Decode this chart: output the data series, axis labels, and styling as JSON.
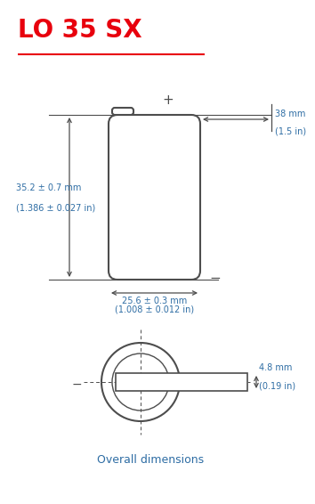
{
  "title": "LO 35 SX",
  "title_color": "#e8000d",
  "line_color": "#4d4d4d",
  "dim_color": "#2e6da4",
  "bg_color": "#ffffff",
  "underline_color": "#e8000d",
  "subtitle": "Overall dimensions",
  "dim_height_mm": "35.2 ± 0.7 mm",
  "dim_height_in": "(1.386 ± 0.027 in)",
  "dim_width_mm": "25.6 ± 0.3 mm",
  "dim_width_in": "(1.008 ± 0.012 in)",
  "dim_top_mm": "38 mm",
  "dim_top_in": "(1.5 in)",
  "dim_thick_mm": "4.8 mm",
  "dim_thick_in": "(0.19 in)"
}
